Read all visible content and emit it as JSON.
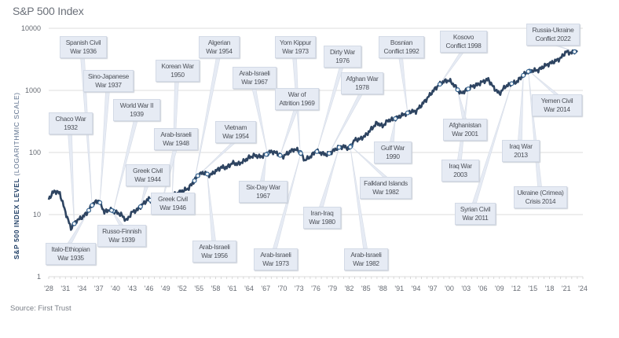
{
  "title": "S&P 500 Index",
  "source": "Source: First Trust",
  "y_axis": {
    "label_bold": "S&P 500 INDEX LEVEL",
    "label_light": "(LOGARITHMIC SCALE)",
    "ticks": [
      "10000",
      "1000",
      "100",
      "10",
      "1"
    ]
  },
  "x_axis": {
    "ticks": [
      "'28",
      "'31",
      "'34",
      "'37",
      "'40",
      "'43",
      "'46",
      "'49",
      "'52",
      "'55",
      "'58",
      "'61",
      "'64",
      "'67",
      "'70",
      "'73",
      "'76",
      "'79",
      "'82",
      "'85",
      "'88",
      "'91",
      "'94",
      "'97",
      "'00",
      "'03",
      "'06",
      "'09",
      "'12",
      "'15",
      "'18",
      "'21",
      "'24"
    ]
  },
  "colors": {
    "line": "#2e4461",
    "marker_stroke": "#2e5d8a",
    "box_bg": "#e6ebf4",
    "gridline": "#dcdcdc"
  },
  "annotations": [
    {
      "l1": "Spanish Civil",
      "l2": "War 1936"
    },
    {
      "l1": "Sino-Japanese",
      "l2": "War 1937"
    },
    {
      "l1": "World War II",
      "l2": "1939"
    },
    {
      "l1": "Chaco War",
      "l2": "1932"
    },
    {
      "l1": "Korean War",
      "l2": "1950"
    },
    {
      "l1": "Algerian",
      "l2": "War 1954"
    },
    {
      "l1": "Arab-Israeli",
      "l2": "War 1948"
    },
    {
      "l1": "Greek Civil",
      "l2": "War 1944"
    },
    {
      "l1": "Vietnam",
      "l2": "War 1954"
    },
    {
      "l1": "Arab-Israeli",
      "l2": "War 1967"
    },
    {
      "l1": "Yom Kippur",
      "l2": "War 1973"
    },
    {
      "l1": "War of",
      "l2": "Attrition 1969"
    },
    {
      "l1": "Dirty War",
      "l2": "1976"
    },
    {
      "l1": "Afghan War",
      "l2": "1978"
    },
    {
      "l1": "Bosnian",
      "l2": "Conflict 1992"
    },
    {
      "l1": "Kosovo",
      "l2": "Conflict 1998"
    },
    {
      "l1": "Russia-Ukraine",
      "l2": "Conflict 2022"
    },
    {
      "l1": "Yemen Civil",
      "l2": "War 2014"
    },
    {
      "l1": "Afghanistan",
      "l2": "War 2001"
    },
    {
      "l1": "Gulf War",
      "l2": "1990"
    },
    {
      "l1": "Iraq War",
      "l2": "2003"
    },
    {
      "l1": "Iraq War",
      "l2": "2013"
    },
    {
      "l1": "Falkland Islands",
      "l2": "War 1982"
    },
    {
      "l1": "Ukraine (Crimea)",
      "l2": "Crisis 2014"
    },
    {
      "l1": "Syrian Civil",
      "l2": "War 2011"
    },
    {
      "l1": "Six-Day War",
      "l2": "1967"
    },
    {
      "l1": "Iran-Iraq",
      "l2": "War 1980"
    },
    {
      "l1": "Greek Civil",
      "l2": "War 1946"
    },
    {
      "l1": "Russo-Finnish",
      "l2": "War 1939"
    },
    {
      "l1": "Italo-Ethiopian",
      "l2": "War 1935"
    },
    {
      "l1": "Arab-Israeli",
      "l2": "War 1956"
    },
    {
      "l1": "Arab-Israeli",
      "l2": "War 1973"
    },
    {
      "l1": "Arab-Israeli",
      "l2": "War 1982"
    }
  ],
  "chart_data": {
    "type": "line",
    "title": "S&P 500 Index",
    "xlabel": "",
    "ylabel": "S&P 500 INDEX LEVEL (LOGARITHMIC SCALE)",
    "yscale": "log",
    "ylim": [
      1,
      10000
    ],
    "xlim": [
      1928,
      2024
    ],
    "grid": "horizontal",
    "x": [
      1928,
      1929,
      1930,
      1931,
      1932,
      1933,
      1934,
      1935,
      1936,
      1937,
      1938,
      1939,
      1940,
      1941,
      1942,
      1943,
      1944,
      1945,
      1946,
      1947,
      1948,
      1949,
      1950,
      1951,
      1952,
      1953,
      1954,
      1955,
      1956,
      1957,
      1958,
      1959,
      1960,
      1961,
      1962,
      1963,
      1964,
      1965,
      1966,
      1967,
      1968,
      1969,
      1970,
      1971,
      1972,
      1973,
      1974,
      1975,
      1976,
      1977,
      1978,
      1979,
      1980,
      1981,
      1982,
      1983,
      1984,
      1985,
      1986,
      1987,
      1988,
      1989,
      1990,
      1991,
      1992,
      1993,
      1994,
      1995,
      1996,
      1997,
      1998,
      1999,
      2000,
      2001,
      2002,
      2003,
      2004,
      2005,
      2006,
      2007,
      2008,
      2009,
      2010,
      2011,
      2012,
      2013,
      2014,
      2015,
      2016,
      2017,
      2018,
      2019,
      2020,
      2021,
      2022,
      2023
    ],
    "series": [
      {
        "name": "S&P 500 Index",
        "values": [
          18,
          24,
          22,
          11,
          6,
          8,
          9,
          11,
          15,
          17,
          11,
          12,
          11,
          10,
          8,
          11,
          12,
          15,
          18,
          15,
          15,
          15,
          19,
          22,
          24,
          26,
          33,
          45,
          47,
          43,
          50,
          58,
          57,
          68,
          65,
          72,
          83,
          90,
          85,
          92,
          104,
          98,
          85,
          98,
          112,
          108,
          75,
          85,
          105,
          98,
          92,
          104,
          120,
          125,
          115,
          160,
          165,
          190,
          240,
          300,
          265,
          330,
          340,
          380,
          415,
          455,
          460,
          580,
          740,
          960,
          1200,
          1400,
          1450,
          1180,
          890,
          1000,
          1150,
          1230,
          1380,
          1500,
          1100,
          880,
          1150,
          1270,
          1350,
          1650,
          2000,
          2080,
          2120,
          2450,
          2700,
          2950,
          3300,
          4200,
          4000,
          4400
        ]
      }
    ],
    "events": [
      {
        "label": "Chaco War 1932",
        "year": 1932
      },
      {
        "label": "Italo-Ethiopian War 1935",
        "year": 1935
      },
      {
        "label": "Spanish Civil War 1936",
        "year": 1936
      },
      {
        "label": "Sino-Japanese War 1937",
        "year": 1937
      },
      {
        "label": "World War II 1939",
        "year": 1939
      },
      {
        "label": "Russo-Finnish War 1939",
        "year": 1939
      },
      {
        "label": "Greek Civil War 1944",
        "year": 1944
      },
      {
        "label": "Greek Civil War 1946",
        "year": 1946
      },
      {
        "label": "Arab-Israeli War 1948",
        "year": 1948
      },
      {
        "label": "Korean War 1950",
        "year": 1950
      },
      {
        "label": "Algerian War 1954",
        "year": 1954
      },
      {
        "label": "Vietnam War 1954",
        "year": 1954
      },
      {
        "label": "Arab-Israeli War 1956",
        "year": 1956
      },
      {
        "label": "Arab-Israeli War 1967",
        "year": 1967
      },
      {
        "label": "Six-Day War 1967",
        "year": 1967
      },
      {
        "label": "War of Attrition 1969",
        "year": 1969
      },
      {
        "label": "Yom Kippur War 1973",
        "year": 1973
      },
      {
        "label": "Arab-Israeli War 1973",
        "year": 1973
      },
      {
        "label": "Dirty War 1976",
        "year": 1976
      },
      {
        "label": "Afghan War 1978",
        "year": 1978
      },
      {
        "label": "Iran-Iraq War 1980",
        "year": 1980
      },
      {
        "label": "Falkland Islands War 1982",
        "year": 1982
      },
      {
        "label": "Arab-Israeli War 1982",
        "year": 1982
      },
      {
        "label": "Gulf War 1990",
        "year": 1990
      },
      {
        "label": "Bosnian Conflict 1992",
        "year": 1992
      },
      {
        "label": "Kosovo Conflict 1998",
        "year": 1998
      },
      {
        "label": "Afghanistan War 2001",
        "year": 2001
      },
      {
        "label": "Iraq War 2003",
        "year": 2003
      },
      {
        "label": "Syrian Civil War 2011",
        "year": 2011
      },
      {
        "label": "Iraq War 2013",
        "year": 2013
      },
      {
        "label": "Ukraine (Crimea) Crisis 2014",
        "year": 2014
      },
      {
        "label": "Yemen Civil War 2014",
        "year": 2014
      },
      {
        "label": "Russia-Ukraine Conflict 2022",
        "year": 2022
      }
    ]
  }
}
